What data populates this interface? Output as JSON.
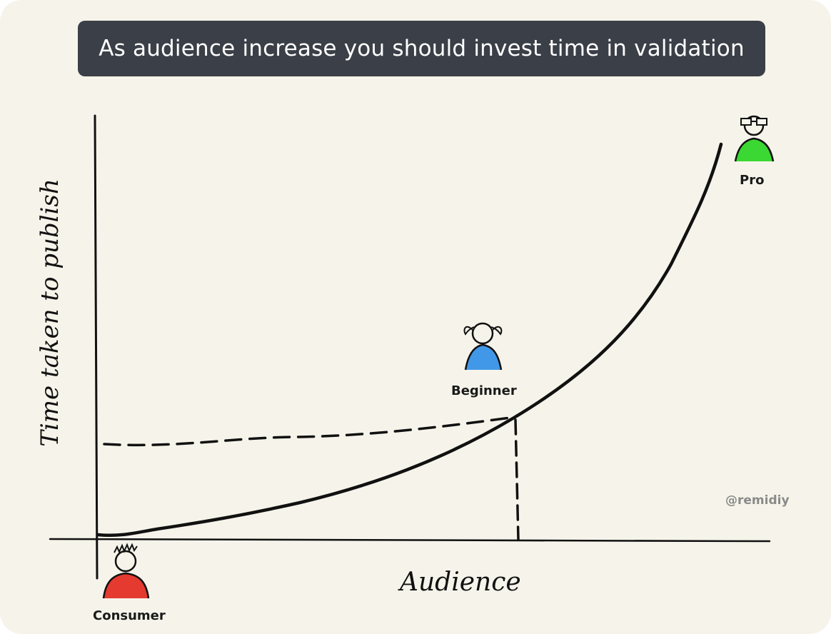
{
  "title": "As audience increase you should invest time in validation",
  "axes": {
    "y_label": "Time taken to publish",
    "x_label": "Audience"
  },
  "personas": [
    {
      "label": "Consumer",
      "color": "#e3261c"
    },
    {
      "label": "Beginner",
      "color": "#2f8ee8"
    },
    {
      "label": "Pro",
      "color": "#27d41e"
    }
  ],
  "credit": "@remidiy",
  "colors": {
    "background": "#f6f4ea",
    "title_box": "#3b3f47",
    "ink": "#111111"
  }
}
